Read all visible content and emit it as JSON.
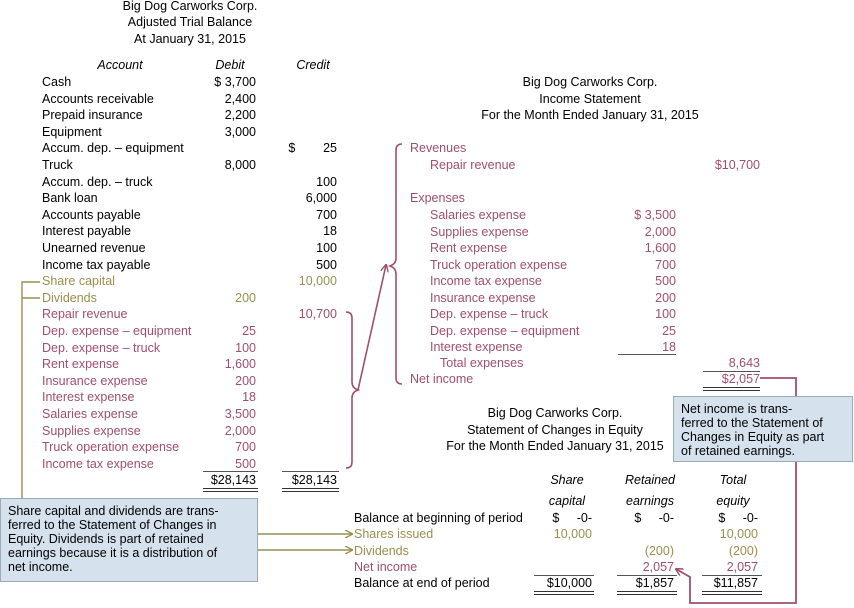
{
  "tb": {
    "company": "Big Dog Carworks Corp.",
    "title": "Adjusted Trial Balance",
    "date": "At January 31, 2015",
    "col_account": "Account",
    "col_debit": "Debit",
    "col_credit": "Credit",
    "rows": [
      {
        "account": "Cash",
        "debit": "$ 3,700",
        "credit": "",
        "cat": "asset"
      },
      {
        "account": "Accounts receivable",
        "debit": "2,400",
        "credit": "",
        "cat": "asset"
      },
      {
        "account": "Prepaid insurance",
        "debit": "2,200",
        "credit": "",
        "cat": "asset"
      },
      {
        "account": "Equipment",
        "debit": "3,000",
        "credit": "",
        "cat": "asset"
      },
      {
        "account": "Accum. dep. – equipment",
        "debit": "",
        "credit": "$        25",
        "cat": "asset"
      },
      {
        "account": "Truck",
        "debit": "8,000",
        "credit": "",
        "cat": "asset"
      },
      {
        "account": "Accum. dep. – truck",
        "debit": "",
        "credit": "100",
        "cat": "asset"
      },
      {
        "account": "Bank loan",
        "debit": "",
        "credit": "6,000",
        "cat": "asset"
      },
      {
        "account": "Accounts payable",
        "debit": "",
        "credit": "700",
        "cat": "asset"
      },
      {
        "account": "Interest payable",
        "debit": "",
        "credit": "18",
        "cat": "asset"
      },
      {
        "account": "Unearned revenue",
        "debit": "",
        "credit": "100",
        "cat": "asset"
      },
      {
        "account": "Income tax payable",
        "debit": "",
        "credit": "500",
        "cat": "asset"
      },
      {
        "account": "Share capital",
        "debit": "",
        "credit": "10,000",
        "cat": "equity"
      },
      {
        "account": "Dividends",
        "debit": "200",
        "credit": "",
        "cat": "equity"
      },
      {
        "account": "Repair revenue",
        "debit": "",
        "credit": "10,700",
        "cat": "income"
      },
      {
        "account": "Dep. expense – equipment",
        "debit": "25",
        "credit": "",
        "cat": "income"
      },
      {
        "account": "Dep. expense – truck",
        "debit": "100",
        "credit": "",
        "cat": "income"
      },
      {
        "account": "Rent expense",
        "debit": "1,600",
        "credit": "",
        "cat": "income"
      },
      {
        "account": "Insurance expense",
        "debit": "200",
        "credit": "",
        "cat": "income"
      },
      {
        "account": "Interest expense",
        "debit": "18",
        "credit": "",
        "cat": "income"
      },
      {
        "account": "Salaries expense",
        "debit": "3,500",
        "credit": "",
        "cat": "income"
      },
      {
        "account": "Supplies expense",
        "debit": "2,000",
        "credit": "",
        "cat": "income"
      },
      {
        "account": "Truck operation expense",
        "debit": "700",
        "credit": "",
        "cat": "income"
      },
      {
        "account": "Income tax expense",
        "debit": "500",
        "credit": "",
        "cat": "income"
      }
    ],
    "total_debit": "$28,143",
    "total_credit": "$28,143"
  },
  "is": {
    "company": "Big Dog Carworks Corp.",
    "title": "Income Statement",
    "period": "For the Month Ended January 31, 2015",
    "revenues_label": "Revenues",
    "revenue_name": "Repair revenue",
    "revenue_amount": "$10,700",
    "expenses_label": "Expenses",
    "expenses": [
      {
        "name": "Salaries expense",
        "amount": "$ 3,500"
      },
      {
        "name": "Supplies expense",
        "amount": "2,000"
      },
      {
        "name": "Rent expense",
        "amount": "1,600"
      },
      {
        "name": "Truck operation expense",
        "amount": "700"
      },
      {
        "name": "Income tax expense",
        "amount": "500"
      },
      {
        "name": "Insurance expense",
        "amount": "200"
      },
      {
        "name": "Dep. expense – truck",
        "amount": "100"
      },
      {
        "name": "Dep. expense – equipment",
        "amount": "25"
      },
      {
        "name": "Interest expense",
        "amount": "18"
      }
    ],
    "total_expenses_label": "Total expenses",
    "total_expenses": "8,643",
    "net_income_label": "Net income",
    "net_income": "$2,057"
  },
  "sce": {
    "company": "Big Dog Carworks Corp.",
    "title": "Statement of Changes in Equity",
    "period": "For the Month Ended January 31, 2015",
    "h_share_1": "Share",
    "h_share_2": "capital",
    "h_ret_1": "Retained",
    "h_ret_2": "earnings",
    "h_tot_1": "Total",
    "h_tot_2": "equity",
    "rows": [
      {
        "label": "Balance at beginning of period",
        "share": "$     -0-",
        "retained": "$     -0-",
        "total": "$     -0-",
        "style": "plain"
      },
      {
        "label": "Shares issued",
        "share": "10,000",
        "retained": "",
        "total": "10,000",
        "style": "olive"
      },
      {
        "label": "Dividends",
        "share": "",
        "retained": "(200)",
        "total": "(200)",
        "style": "olive"
      },
      {
        "label": "Net income",
        "share": "",
        "retained": "2,057",
        "total": "2,057",
        "style": "mauve"
      },
      {
        "label": "Balance at end of period",
        "share": "$10,000",
        "retained": "$1,857",
        "total": "$11,857",
        "style": "plain"
      }
    ]
  },
  "notes": {
    "net_income": "Net income is trans-\nferred to the Statement of\nChanges in Equity as part\nof retained earnings.",
    "equity": "Share capital and dividends are trans-\nferred to the Statement of Changes in\nEquity.  Dividends is part of retained\nearnings because it is a distribution of\nnet income."
  },
  "colors": {
    "income_accounts": "#a0506a",
    "equity_accounts": "#9b8f4e"
  }
}
